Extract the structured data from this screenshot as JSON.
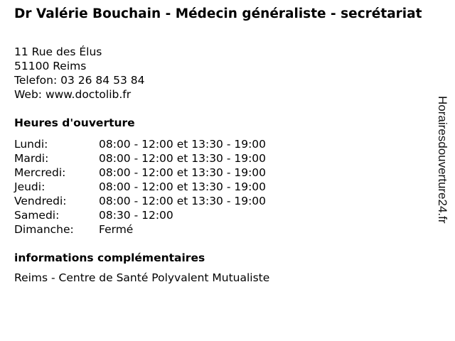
{
  "title": "Dr Valérie Bouchain - Médecin généraliste - secrétariat",
  "address": {
    "street": "11 Rue des Élus",
    "city": "51100 Reims",
    "phone": "Telefon: 03 26 84 53 84",
    "web": "Web: www.doctolib.fr"
  },
  "hours_heading": "Heures d'ouverture",
  "hours": [
    {
      "day": "Lundi:",
      "time": "08:00 - 12:00 et 13:30 - 19:00"
    },
    {
      "day": "Mardi:",
      "time": "08:00 - 12:00 et 13:30 - 19:00"
    },
    {
      "day": "Mercredi:",
      "time": "08:00 - 12:00 et 13:30 - 19:00"
    },
    {
      "day": "Jeudi:",
      "time": "08:00 - 12:00 et 13:30 - 19:00"
    },
    {
      "day": "Vendredi:",
      "time": "08:00 - 12:00 et 13:30 - 19:00"
    },
    {
      "day": "Samedi:",
      "time": "08:30 - 12:00"
    },
    {
      "day": "Dimanche:",
      "time": "Fermé"
    }
  ],
  "info_heading": "informations complémentaires",
  "info_text": "Reims - Centre de Santé Polyvalent Mutualiste",
  "watermark": "Horairesdouverture24.fr"
}
